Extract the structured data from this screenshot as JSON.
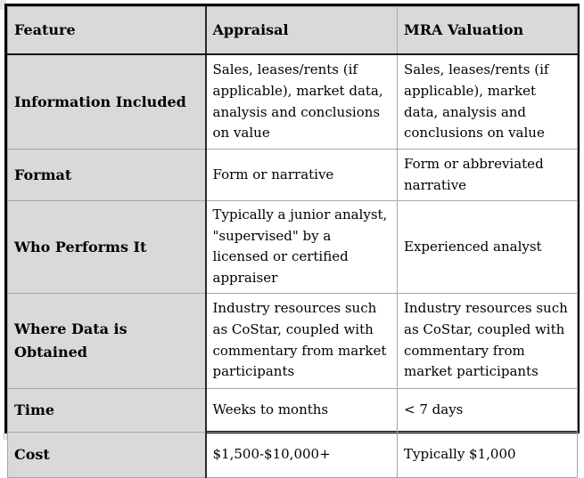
{
  "table": {
    "columns": {
      "feature": "Feature",
      "appraisal": "Appraisal",
      "mra": "MRA Valuation"
    },
    "rows": [
      {
        "feature": "Information Included",
        "appraisal": "Sales, leases/rents (if applicable), market data, analysis and conclusions on value",
        "mra": "Sales, leases/rents (if applicable), market data, analysis and conclusions on value"
      },
      {
        "feature": "Format",
        "appraisal": "Form or narrative",
        "mra": "Form or abbreviated narrative"
      },
      {
        "feature": "Who Performs It",
        "appraisal": "Typically a junior analyst, \"supervised\" by a licensed or certified appraiser",
        "mra": "Experienced analyst"
      },
      {
        "feature": "Where Data is Obtained",
        "appraisal": "Industry resources such as CoStar, coupled with commentary from market participants",
        "mra": "Industry resources such as CoStar, coupled with commentary from market participants"
      },
      {
        "feature": "Time",
        "appraisal": "Weeks to months",
        "mra": "< 7 days"
      },
      {
        "feature": "Cost",
        "appraisal": "$1,500-$10,000+",
        "mra": "Typically $1,000"
      }
    ],
    "colors": {
      "header_bg": "#d9d9d9",
      "feature_col_bg": "#d9d9d9",
      "outer_border": "#000000",
      "inner_border": "#a6a6a6",
      "strong_divider": "#2a2a2a",
      "text": "#000000"
    }
  }
}
